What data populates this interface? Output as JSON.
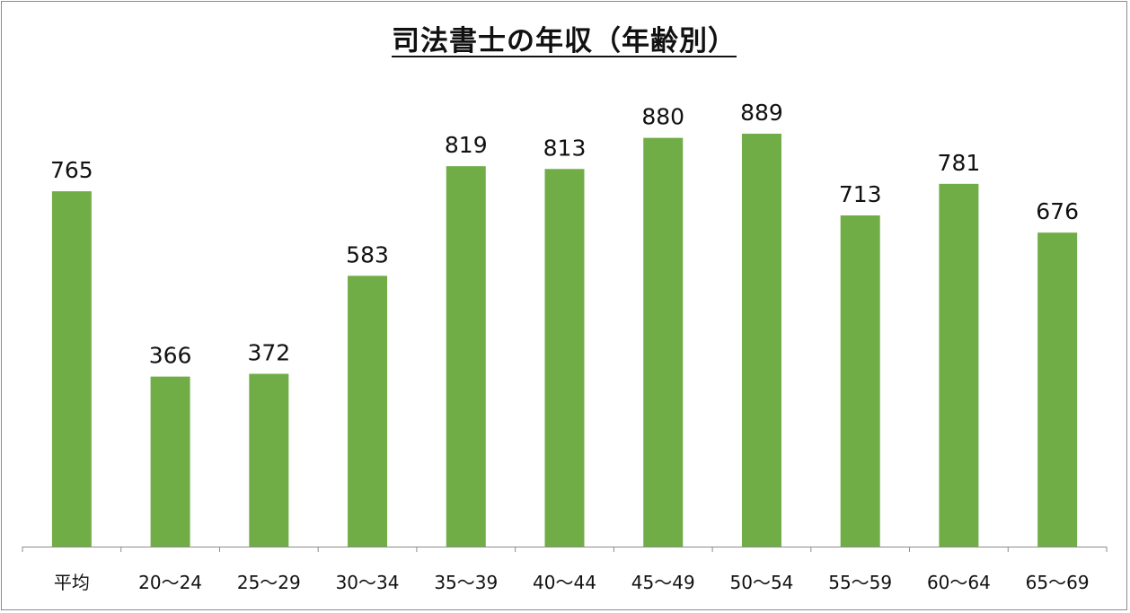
{
  "chart_data": {
    "type": "bar",
    "title": "司法書士の年収（年齢別）",
    "categories": [
      "平均",
      "20〜24",
      "25〜29",
      "30〜34",
      "35〜39",
      "40〜44",
      "45〜49",
      "50〜54",
      "55〜59",
      "60〜64",
      "65〜69"
    ],
    "values": [
      765,
      366,
      372,
      583,
      819,
      813,
      880,
      889,
      713,
      781,
      676
    ],
    "xlabel": "",
    "ylabel": "",
    "ylim": [
      0,
      1000
    ],
    "grid": false,
    "legend": "none",
    "data_labels": true,
    "bar_color": "#70ad47",
    "axis_color": "#8c8c8c"
  }
}
